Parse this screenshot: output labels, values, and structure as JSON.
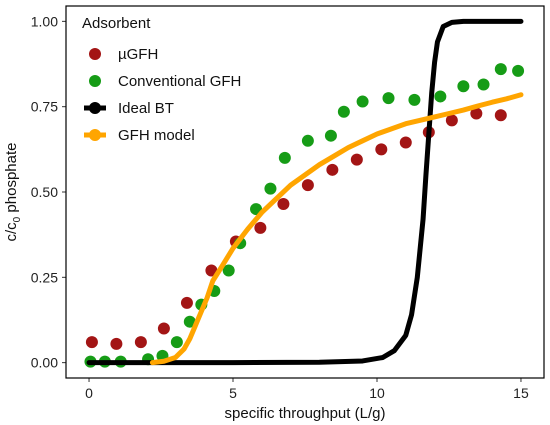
{
  "chart_data": {
    "type": "scatter",
    "xlabel": "specific throughput (L/g)",
    "ylabel_main": "c/c",
    "ylabel_sub": "0",
    "ylabel_tail": " phosphate",
    "xlim": [
      -0.8,
      15.8
    ],
    "ylim": [
      -0.045,
      1.045
    ],
    "x_ticks": [
      0,
      5,
      10,
      15
    ],
    "x_tick_labels": [
      "0",
      "5",
      "10",
      "15"
    ],
    "y_ticks": [
      0.0,
      0.25,
      0.5,
      0.75,
      1.0
    ],
    "y_tick_labels": [
      "0.00",
      "0.25",
      "0.50",
      "0.75",
      "1.00"
    ],
    "grid": false,
    "legend": {
      "title": "Adsorbent",
      "placement": "top-left",
      "entries": [
        "µGFH",
        "Conventional GFH",
        "Ideal BT",
        "GFH model"
      ]
    },
    "series": [
      {
        "name": "µGFH",
        "kind": "points",
        "color": "#a31515",
        "x": [
          0.1,
          0.95,
          1.8,
          2.6,
          3.4,
          4.25,
          5.1,
          5.95,
          6.75,
          7.6,
          8.45,
          9.3,
          10.15,
          11.0,
          11.8,
          12.6,
          13.45,
          14.3
        ],
        "y": [
          0.06,
          0.055,
          0.06,
          0.1,
          0.175,
          0.27,
          0.355,
          0.395,
          0.465,
          0.52,
          0.565,
          0.595,
          0.625,
          0.645,
          0.675,
          0.71,
          0.73,
          0.725
        ]
      },
      {
        "name": "Conventional GFH",
        "kind": "points",
        "color": "#169c16",
        "x": [
          0.05,
          0.55,
          1.1,
          2.05,
          2.55,
          3.05,
          3.5,
          3.9,
          4.35,
          4.85,
          5.25,
          5.8,
          6.3,
          6.8,
          7.6,
          8.4,
          8.85,
          9.5,
          10.4,
          11.3,
          12.2,
          13.0,
          13.7,
          14.3,
          14.9
        ],
        "y": [
          0.003,
          0.003,
          0.003,
          0.01,
          0.02,
          0.06,
          0.12,
          0.17,
          0.21,
          0.27,
          0.35,
          0.45,
          0.51,
          0.6,
          0.65,
          0.665,
          0.735,
          0.765,
          0.775,
          0.77,
          0.78,
          0.81,
          0.815,
          0.86,
          0.855
        ]
      },
      {
        "name": "Ideal BT",
        "kind": "line",
        "color": "#000000",
        "x": [
          0,
          5,
          8,
          9.5,
          10.2,
          10.6,
          11.0,
          11.2,
          11.4,
          11.6,
          11.7,
          11.8,
          11.9,
          12.0,
          12.1,
          12.3,
          12.6,
          13.0,
          14.0,
          15.0
        ],
        "y": [
          0.0,
          0.0,
          0.001,
          0.005,
          0.015,
          0.035,
          0.08,
          0.14,
          0.25,
          0.42,
          0.55,
          0.67,
          0.79,
          0.88,
          0.94,
          0.985,
          0.997,
          1.0,
          1.0,
          1.0
        ]
      },
      {
        "name": "GFH model",
        "kind": "line",
        "color": "#ffa500",
        "x": [
          2.2,
          2.6,
          3.0,
          3.3,
          3.5,
          3.7,
          3.9,
          4.1,
          4.3,
          4.6,
          5.0,
          5.5,
          6.0,
          6.5,
          7.0,
          7.5,
          8.0,
          8.5,
          9.0,
          9.5,
          10.0,
          10.5,
          11.0,
          11.5,
          12.0,
          12.5,
          13.0,
          13.5,
          14.0,
          14.5,
          15.0
        ],
        "y": [
          0.0,
          0.004,
          0.015,
          0.04,
          0.07,
          0.11,
          0.15,
          0.19,
          0.24,
          0.28,
          0.335,
          0.39,
          0.44,
          0.48,
          0.52,
          0.55,
          0.58,
          0.605,
          0.63,
          0.65,
          0.67,
          0.685,
          0.7,
          0.71,
          0.72,
          0.73,
          0.74,
          0.752,
          0.763,
          0.773,
          0.785
        ]
      }
    ]
  }
}
